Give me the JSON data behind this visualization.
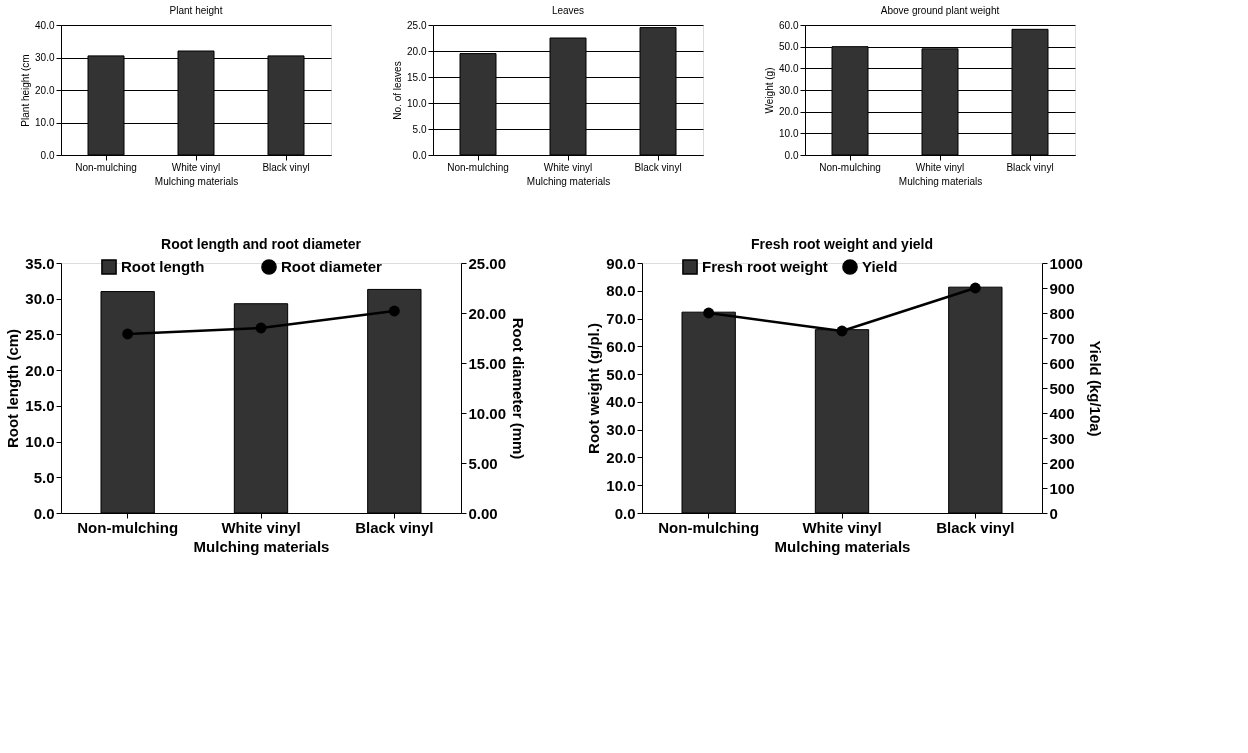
{
  "chart_data": [
    {
      "type": "bar",
      "title": "Plant height",
      "xlabel": "Mulching materials",
      "ylabel": "Plant height (cm",
      "categories": [
        "Non-mulching",
        "White vinyl",
        "Black vinyl"
      ],
      "series": [
        {
          "color": "#333333",
          "values": [
            30.5,
            32.0,
            30.5
          ]
        }
      ],
      "ylim": [
        0,
        40
      ],
      "yticks": [
        {
          "value": 0,
          "label": "0.0"
        },
        {
          "value": 10,
          "label": "10.0"
        },
        {
          "value": 20,
          "label": "20.0"
        },
        {
          "value": 30,
          "label": "30.0"
        },
        {
          "value": 40,
          "label": "40.0"
        }
      ],
      "grid": "y"
    },
    {
      "type": "bar",
      "title": "Leaves",
      "xlabel": "Mulching materials",
      "ylabel": "No. of leaves",
      "categories": [
        "Non-mulching",
        "White vinyl",
        "Black vinyl"
      ],
      "series": [
        {
          "color": "#333333",
          "values": [
            19.5,
            22.5,
            24.5
          ]
        }
      ],
      "ylim": [
        0,
        25
      ],
      "yticks": [
        {
          "value": 0,
          "label": "0.0"
        },
        {
          "value": 5,
          "label": "5.0"
        },
        {
          "value": 10,
          "label": "10.0"
        },
        {
          "value": 15,
          "label": "15.0"
        },
        {
          "value": 20,
          "label": "20.0"
        },
        {
          "value": 25,
          "label": "25.0"
        }
      ],
      "grid": "y"
    },
    {
      "type": "bar",
      "title": "Above ground plant weight",
      "xlabel": "Mulching materials",
      "ylabel": "Weight (g)",
      "categories": [
        "Non-mulching",
        "White vinyl",
        "Black vinyl"
      ],
      "series": [
        {
          "color": "#333333",
          "values": [
            50.0,
            49.0,
            58.0
          ]
        }
      ],
      "ylim": [
        0,
        60
      ],
      "yticks": [
        {
          "value": 0,
          "label": "0.0"
        },
        {
          "value": 10,
          "label": "10.0"
        },
        {
          "value": 20,
          "label": "20.0"
        },
        {
          "value": 30,
          "label": "30.0"
        },
        {
          "value": 40,
          "label": "40.0"
        },
        {
          "value": 50,
          "label": "50.0"
        },
        {
          "value": 60,
          "label": "60.0"
        }
      ],
      "grid": "y"
    },
    {
      "type": "bar",
      "title": "Root length and root diameter",
      "xlabel": "Mulching materials",
      "ylabel": "Root length (cm)",
      "y2label": "Root diameter (mm)",
      "categories": [
        "Non-mulching",
        "White vinyl",
        "Black vinyl"
      ],
      "series": [
        {
          "name": "Root length",
          "type": "bar",
          "color": "#333333",
          "values": [
            31.0,
            29.3,
            31.3
          ]
        },
        {
          "name": "Root diameter",
          "type": "line",
          "axis": "y2",
          "color": "#000000",
          "marker": "circle",
          "line_style": "solid",
          "values": [
            17.9,
            18.5,
            20.2
          ]
        }
      ],
      "ylim": [
        0,
        35
      ],
      "yticks": [
        {
          "value": 0,
          "label": "0.0"
        },
        {
          "value": 5,
          "label": "5.0"
        },
        {
          "value": 10,
          "label": "10.0"
        },
        {
          "value": 15,
          "label": "15.0"
        },
        {
          "value": 20,
          "label": "20.0"
        },
        {
          "value": 25,
          "label": "25.0"
        },
        {
          "value": 30,
          "label": "30.0"
        },
        {
          "value": 35,
          "label": "35.0"
        }
      ],
      "y2lim": [
        0,
        25
      ],
      "y2ticks": [
        {
          "value": 0,
          "label": "0.00"
        },
        {
          "value": 5,
          "label": "5.00"
        },
        {
          "value": 10,
          "label": "10.00"
        },
        {
          "value": 15,
          "label": "15.00"
        },
        {
          "value": 20,
          "label": "20.00"
        },
        {
          "value": 25,
          "label": "25.00"
        }
      ],
      "legend": "top",
      "grid": false
    },
    {
      "type": "bar",
      "title": "Fresh root weight and yield",
      "xlabel": "Mulching materials",
      "ylabel": "Root weight (g/pl.)",
      "y2label": "Yield (kg/10a)",
      "categories": [
        "Non-mulching",
        "White vinyl",
        "Black vinyl"
      ],
      "series": [
        {
          "name": "Fresh root weight",
          "type": "bar",
          "color": "#333333",
          "values": [
            72.3,
            66.0,
            81.3
          ]
        },
        {
          "name": "Yield",
          "type": "line",
          "axis": "y2",
          "color": "#000000",
          "marker": "circle",
          "line_style": "solid",
          "values": [
            800,
            728,
            900
          ]
        }
      ],
      "ylim": [
        0,
        90
      ],
      "yticks": [
        {
          "value": 0,
          "label": "0.0"
        },
        {
          "value": 10,
          "label": "10.0"
        },
        {
          "value": 20,
          "label": "20.0"
        },
        {
          "value": 30,
          "label": "30.0"
        },
        {
          "value": 40,
          "label": "40.0"
        },
        {
          "value": 50,
          "label": "50.0"
        },
        {
          "value": 60,
          "label": "60.0"
        },
        {
          "value": 70,
          "label": "70.0"
        },
        {
          "value": 80,
          "label": "80.0"
        },
        {
          "value": 90,
          "label": "90.0"
        }
      ],
      "y2lim": [
        0,
        1000
      ],
      "y2ticks": [
        0,
        100,
        200,
        300,
        400,
        500,
        600,
        700,
        800,
        900,
        1000
      ],
      "legend": "top",
      "grid": false
    }
  ]
}
